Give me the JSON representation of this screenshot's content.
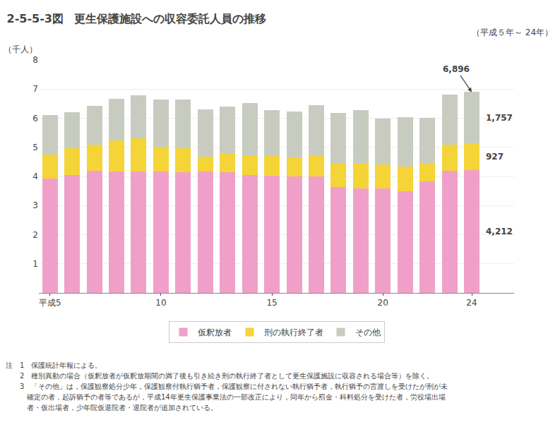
{
  "chart_data": {
    "type": "bar",
    "stacked": true,
    "header_label": "2-5-5-3図",
    "title": "更生保護施設への収容委託人員の推移",
    "subtitle": "（平成５年～ 24年）",
    "ylabel": "（千人）",
    "categories": [
      "平成5",
      null,
      null,
      null,
      null,
      "10",
      null,
      null,
      null,
      null,
      "15",
      null,
      null,
      null,
      null,
      "20",
      null,
      null,
      null,
      "24"
    ],
    "series": [
      {
        "name": "仮釈放者",
        "color": "#f0a0c8",
        "values": [
          3.93,
          4.05,
          4.2,
          4.18,
          4.17,
          4.17,
          4.14,
          4.18,
          4.14,
          4.05,
          4.02,
          4.0,
          4.0,
          3.64,
          3.6,
          3.58,
          3.48,
          3.82,
          4.2,
          4.21
        ]
      },
      {
        "name": "刑の執行終了者",
        "color": "#f5d438",
        "values": [
          0.82,
          0.93,
          0.9,
          1.06,
          1.13,
          0.85,
          0.83,
          0.5,
          0.63,
          0.68,
          0.68,
          0.65,
          0.7,
          0.8,
          0.85,
          0.83,
          0.87,
          0.65,
          0.9,
          0.93
        ]
      },
      {
        "name": "その他",
        "color": "#c8ccc0",
        "values": [
          1.37,
          1.22,
          1.32,
          1.42,
          1.48,
          1.63,
          1.68,
          1.62,
          1.62,
          1.78,
          1.58,
          1.58,
          1.75,
          1.75,
          1.82,
          1.59,
          1.68,
          1.55,
          1.72,
          1.76
        ]
      }
    ],
    "ylim": [
      0,
      8
    ],
    "yticks": [
      1,
      2,
      3,
      4,
      5,
      6,
      7,
      8
    ],
    "grid": true,
    "legend": "bottom",
    "annotations": [
      {
        "text": "6,896",
        "x": "24"
      },
      {
        "text": "1,757",
        "x": "24",
        "series": "その他"
      },
      {
        "text": "927",
        "x": "24",
        "series": "刑の執行終了者"
      },
      {
        "text": "4,212",
        "x": "24",
        "series": "仮釈放者"
      }
    ],
    "notes": [
      "注　1　保護統計年報による。",
      "　　2　種別異動の場合（仮釈放者が仮釈放期間の満了後も引き続き刑の執行終了者として更生保護施設に収容される場合等）を除く。",
      "　　3　「その他」は，保護観察処分少年，保護観察付執行猶予者，保護観察に付されない執行猶予者，執行猶予の言渡しを受けたが刑が未",
      "　　　確定の者，起訴猶予の者等であるが，平成14年更生保護事業法の一部改正により，同年から罰金・科料処分を受けた者，労役場出場",
      "　　　者・仮出場者，少年院仮退院者・退院者が追加されている。"
    ]
  }
}
